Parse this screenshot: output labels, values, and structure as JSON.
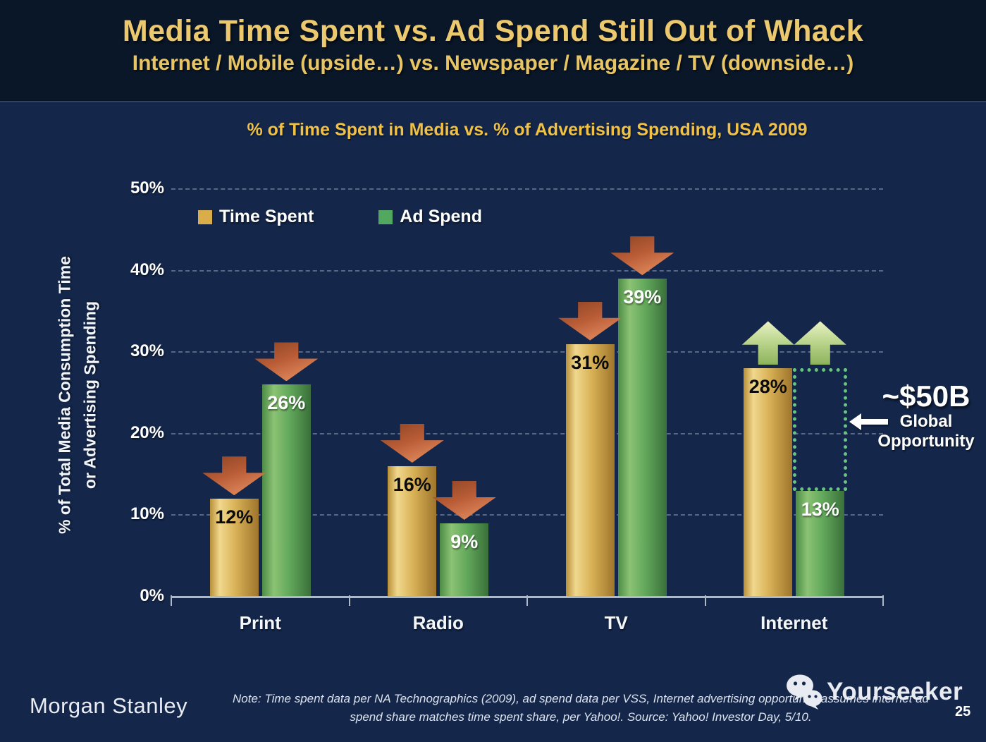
{
  "slide": {
    "title": "Media Time Spent vs. Ad Spend Still Out of Whack",
    "subtitle": "Internet / Mobile (upside…) vs. Newspaper / Magazine / TV (downside…)",
    "logo_text": "Morgan Stanley",
    "note_line1": "Note: Time spent data per NA Technographics (2009), ad spend data per VSS, Internet advertising opportunity assumes internet ad",
    "note_line2": "spend share matches time spent share, per Yahoo!. Source: Yahoo! Investor Day, 5/10.",
    "page_number": "25",
    "watermark_text": "Yourseeker"
  },
  "colors": {
    "header_background": "#0a1729",
    "body_background": "#14274b",
    "title_gold": "#ecc96e",
    "chart_title_gold": "#f0c145",
    "time_spent_gold": "#d9ad4a",
    "ad_spend_green": "#53a85f",
    "down_arrow_red": "#c06a40",
    "up_arrow_green": "#b5d287",
    "opportunity_dotted_green": "#66c67e",
    "axis_gray": "#aeb9c6"
  },
  "chart_data": {
    "type": "bar",
    "title": "% of Time Spent in Media vs. % of Advertising Spending, USA 2009",
    "categories": [
      "Print",
      "Radio",
      "TV",
      "Internet"
    ],
    "series": [
      {
        "name": "Time Spent",
        "values": [
          12,
          16,
          31,
          28
        ],
        "color": "#d9ad4a",
        "label_style": "dark"
      },
      {
        "name": "Ad Spend",
        "values": [
          26,
          9,
          39,
          13
        ],
        "color": "#53a85f",
        "label_style": "light"
      }
    ],
    "value_suffix": "%",
    "ylabel_line1": "% of Total Media Consumption Time",
    "ylabel_line2": "or Advertising Spending",
    "yticks": [
      "0%",
      "10%",
      "20%",
      "30%",
      "40%",
      "50%"
    ],
    "ylim": [
      0,
      50
    ],
    "grid": "dashed-horizontal",
    "legend_position": "top-left-inside",
    "annotations": {
      "down_arrows": [
        {
          "category": "Print",
          "series": "Time Spent"
        },
        {
          "category": "Print",
          "series": "Ad Spend"
        },
        {
          "category": "Radio",
          "series": "Time Spent"
        },
        {
          "category": "Radio",
          "series": "Ad Spend"
        },
        {
          "category": "TV",
          "series": "Time Spent"
        },
        {
          "category": "TV",
          "series": "Ad Spend"
        }
      ],
      "up_arrows": [
        {
          "category": "Internet",
          "series": "Time Spent"
        },
        {
          "category": "Internet",
          "series": "Ad Spend"
        }
      ],
      "opportunity_box": {
        "category": "Internet",
        "series": "Ad Spend",
        "from": 13,
        "to": 28
      },
      "callout": {
        "value": "~$50B",
        "label_line1": "Global",
        "label_line2": "Opportunity"
      }
    }
  }
}
